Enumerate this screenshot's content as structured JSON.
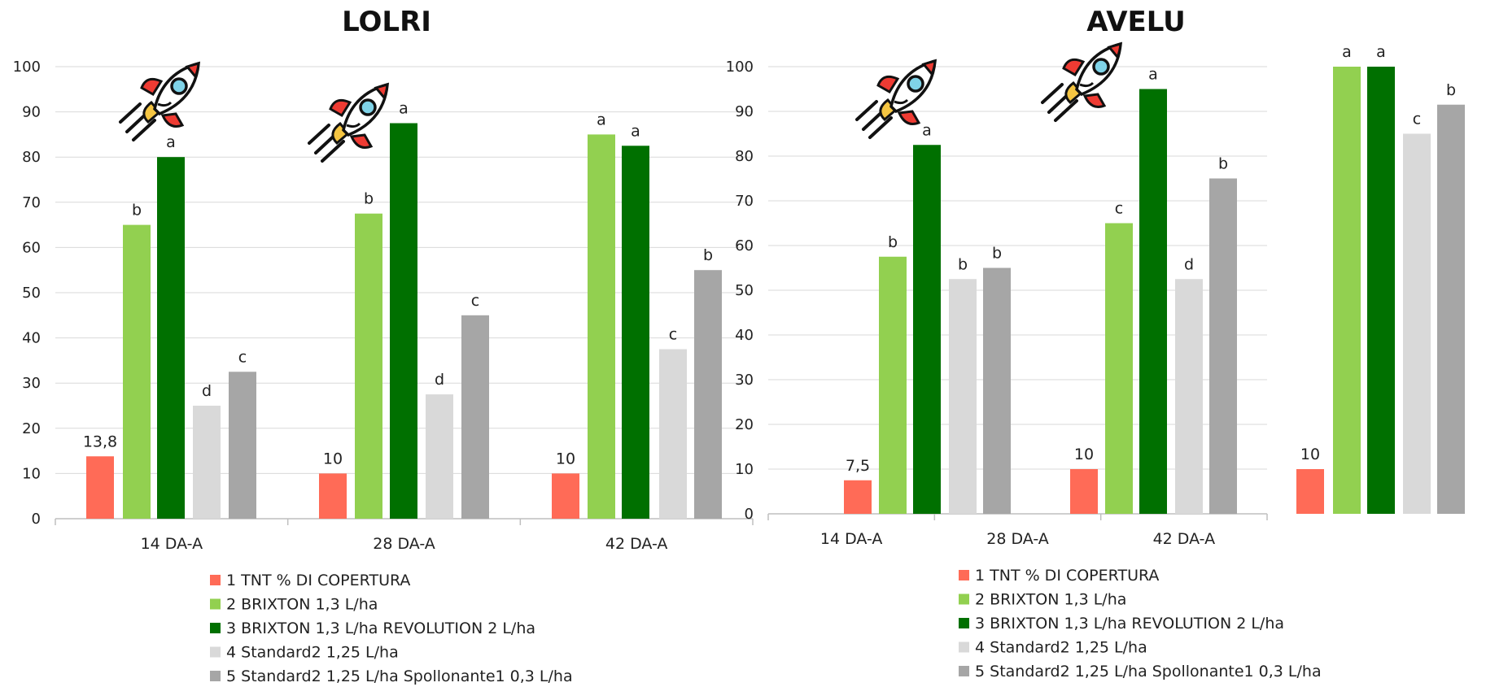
{
  "chart_data": [
    {
      "type": "bar",
      "title": "LOLRI",
      "categories": [
        "14 DA-A",
        "28 DA-A",
        "42 DA-A"
      ],
      "ylim": [
        0,
        100
      ],
      "yticks": [
        0,
        10,
        20,
        30,
        40,
        50,
        60,
        70,
        80,
        90,
        100
      ],
      "grid": true,
      "legend_position": "bottom",
      "series": [
        {
          "name": "1 TNT % DI COPERTURA",
          "color": "#ff6b57",
          "values": [
            13.8,
            10,
            10
          ],
          "labels": [
            "13,8",
            "10",
            "10"
          ]
        },
        {
          "name": "2 BRIXTON 1,3 L/ha",
          "color": "#92d050",
          "values": [
            65,
            67.5,
            85
          ],
          "labels": [
            "b",
            "b",
            "a"
          ]
        },
        {
          "name": "3 BRIXTON 1,3 L/ha  REVOLUTION 2 L/ha",
          "color": "#007000",
          "values": [
            80,
            87.5,
            82.5
          ],
          "labels": [
            "a",
            "a",
            "a"
          ]
        },
        {
          "name": "4 Standard2 1,25 L/ha",
          "color": "#d9d9d9",
          "values": [
            25,
            27.5,
            37.5
          ],
          "labels": [
            "d",
            "d",
            "c"
          ]
        },
        {
          "name": "5 Standard2 1,25 L/ha  Spollonante1 0,3 L/ha",
          "color": "#a6a6a6",
          "values": [
            32.5,
            45,
            55
          ],
          "labels": [
            "c",
            "c",
            "b"
          ]
        }
      ]
    },
    {
      "type": "bar",
      "title": "AVELU",
      "categories": [
        "14 DA-A",
        "28 DA-A",
        "42 DA-A"
      ],
      "ylim": [
        0,
        100
      ],
      "yticks": [
        0,
        10,
        20,
        30,
        40,
        50,
        60,
        70,
        80,
        90,
        100
      ],
      "grid": true,
      "legend_position": "bottom",
      "series": [
        {
          "name": "1 TNT % DI COPERTURA",
          "color": "#ff6b57",
          "values": [
            7.5,
            10,
            10
          ],
          "labels": [
            "7,5",
            "10",
            "10"
          ]
        },
        {
          "name": "2 BRIXTON 1,3 L/ha",
          "color": "#92d050",
          "values": [
            57.5,
            65,
            100
          ],
          "labels": [
            "b",
            "c",
            "a"
          ]
        },
        {
          "name": "3 BRIXTON 1,3 L/ha  REVOLUTION 2 L/ha",
          "color": "#007000",
          "values": [
            82.5,
            95,
            100
          ],
          "labels": [
            "a",
            "a",
            "a"
          ]
        },
        {
          "name": "4 Standard2 1,25 L/ha",
          "color": "#d9d9d9",
          "values": [
            52.5,
            52.5,
            85
          ],
          "labels": [
            "b",
            "d",
            "c"
          ]
        },
        {
          "name": "5 Standard2 1,25 L/ha  Spollonante1 0,3 L/ha",
          "color": "#a6a6a6",
          "values": [
            55,
            75,
            91.5
          ],
          "labels": [
            "b",
            "b",
            "b"
          ]
        }
      ]
    }
  ],
  "icons": [
    "rocket-icon",
    "rocket-icon",
    "rocket-icon",
    "rocket-icon"
  ]
}
